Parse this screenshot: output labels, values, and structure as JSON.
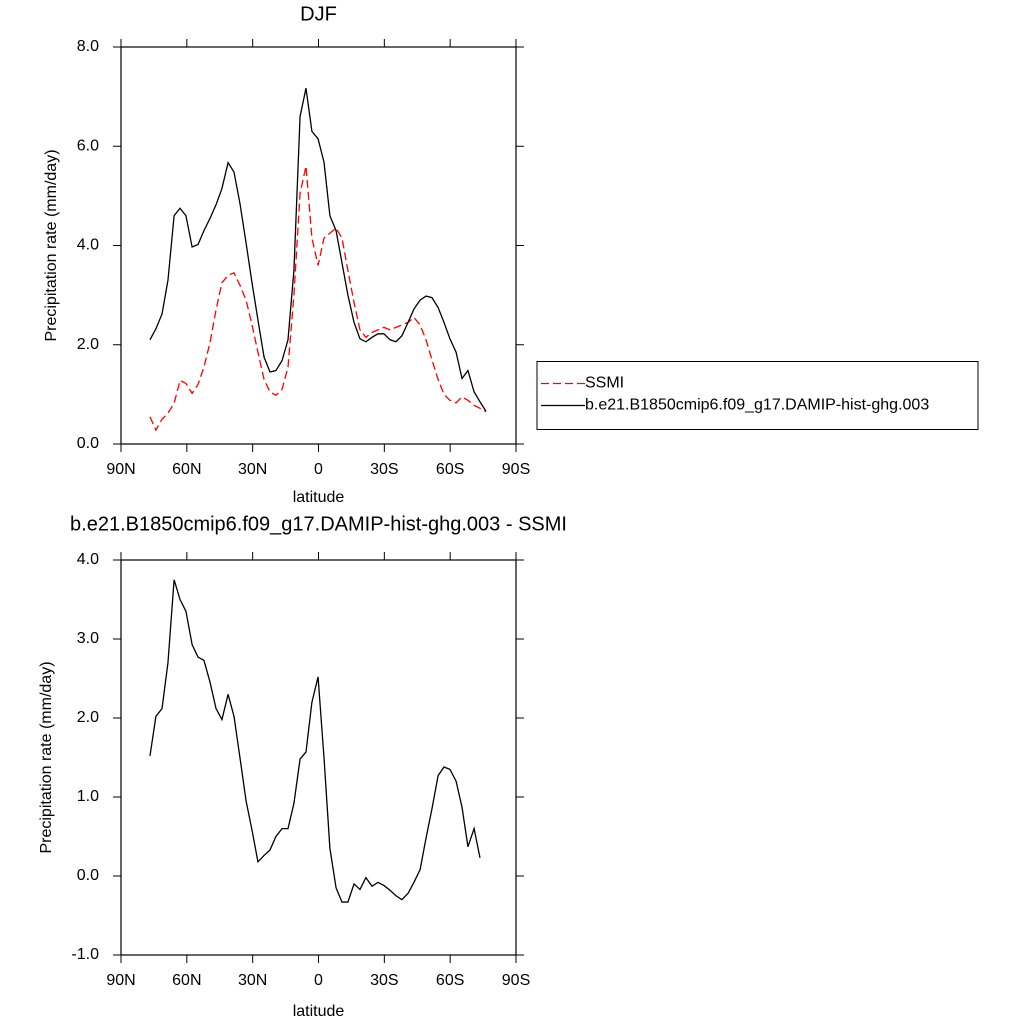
{
  "chart_data": [
    {
      "type": "line",
      "title": "DJF",
      "xlabel": "latitude",
      "ylabel": "Precipitation rate (mm/day)",
      "x": [
        76.8,
        74.1,
        71.3,
        68.6,
        65.8,
        63.1,
        60.4,
        57.6,
        54.9,
        52.2,
        49.4,
        46.7,
        44.0,
        41.2,
        38.5,
        35.8,
        33.0,
        30.3,
        27.6,
        24.8,
        22.1,
        19.4,
        16.6,
        13.9,
        11.2,
        8.4,
        5.7,
        3.0,
        0.2,
        -2.5,
        -5.2,
        -8.0,
        -10.7,
        -13.4,
        -16.2,
        -18.9,
        -21.6,
        -24.4,
        -27.1,
        -29.8,
        -32.6,
        -35.3,
        -38.0,
        -40.8,
        -43.5,
        -46.3,
        -49.0,
        -51.7,
        -54.5,
        -57.2,
        -59.9,
        -62.7,
        -65.4,
        -68.1,
        -70.9,
        -73.6,
        -76.3
      ],
      "series": [
        {
          "name": "SSMI",
          "color": "#ff0000",
          "line_style": "dashed",
          "values": [
            0.55,
            0.28,
            0.5,
            0.62,
            0.82,
            1.28,
            1.22,
            1.02,
            1.2,
            1.55,
            2.05,
            2.7,
            3.25,
            3.4,
            3.45,
            3.2,
            2.9,
            2.4,
            1.85,
            1.3,
            1.05,
            0.98,
            1.1,
            1.55,
            3.0,
            5.05,
            5.6,
            4.15,
            3.6,
            4.15,
            4.25,
            4.35,
            4.15,
            3.5,
            2.85,
            2.3,
            2.15,
            2.25,
            2.3,
            2.35,
            2.3,
            2.35,
            2.4,
            2.45,
            2.55,
            2.4,
            2.1,
            1.7,
            1.3,
            1.0,
            0.88,
            0.83,
            0.95,
            0.88,
            0.78,
            0.72,
            0.65
          ]
        },
        {
          "name": "b.e21.B1850cmip6.f09_g17.DAMIP-hist-ghg.003",
          "color": "#000000",
          "line_style": "solid",
          "values": [
            2.1,
            2.32,
            2.62,
            3.3,
            4.6,
            4.75,
            4.6,
            3.97,
            4.02,
            4.3,
            4.55,
            4.82,
            5.15,
            5.67,
            5.48,
            4.85,
            4.05,
            3.25,
            2.5,
            1.75,
            1.45,
            1.48,
            1.68,
            2.1,
            3.5,
            6.6,
            7.17,
            6.3,
            6.15,
            5.68,
            4.6,
            4.3,
            3.65,
            3.0,
            2.45,
            2.12,
            2.06,
            2.15,
            2.22,
            2.22,
            2.1,
            2.06,
            2.18,
            2.45,
            2.72,
            2.9,
            2.98,
            2.95,
            2.75,
            2.45,
            2.12,
            1.85,
            1.32,
            1.48,
            1.05,
            0.85,
            0.66
          ]
        }
      ],
      "xlim": [
        90,
        -90
      ],
      "xticks": [
        {
          "value": 90,
          "label": "90N"
        },
        {
          "value": 60,
          "label": "60N"
        },
        {
          "value": 30,
          "label": "30N"
        },
        0,
        {
          "value": -30,
          "label": "30S"
        },
        {
          "value": -60,
          "label": "60S"
        },
        {
          "value": -90,
          "label": "90S"
        }
      ],
      "ylim": [
        0,
        8
      ],
      "yticks": [
        {
          "value": 0,
          "label": "0.0"
        },
        {
          "value": 2,
          "label": "2.0"
        },
        {
          "value": 4,
          "label": "4.0"
        },
        {
          "value": 6,
          "label": "6.0"
        },
        {
          "value": 8,
          "label": "8.0"
        }
      ],
      "legend": "right"
    },
    {
      "type": "line",
      "title": "b.e21.B1850cmip6.f09_g17.DAMIP-hist-ghg.003 - SSMI",
      "xlabel": "latitude",
      "ylabel": "Precipitation rate (mm/day)",
      "x": [
        76.8,
        74.1,
        71.3,
        68.6,
        65.8,
        63.1,
        60.4,
        57.6,
        54.9,
        52.2,
        49.4,
        46.7,
        44.0,
        41.2,
        38.5,
        35.8,
        33.0,
        30.3,
        27.6,
        24.8,
        22.1,
        19.4,
        16.6,
        13.9,
        11.2,
        8.4,
        5.7,
        3.0,
        0.2,
        -2.5,
        -5.2,
        -8.0,
        -10.7,
        -13.4,
        -16.2,
        -18.9,
        -21.6,
        -24.4,
        -27.1,
        -29.8,
        -32.6,
        -35.3,
        -38.0,
        -40.8,
        -43.5,
        -46.3,
        -49.0,
        -51.7,
        -54.5,
        -57.2,
        -59.9,
        -62.7,
        -65.4,
        -68.1,
        -70.9,
        -73.6
      ],
      "series": [
        {
          "color": "#000000",
          "line_style": "solid",
          "values": [
            1.52,
            2.02,
            2.12,
            2.7,
            3.75,
            3.5,
            3.35,
            2.93,
            2.77,
            2.73,
            2.45,
            2.12,
            1.98,
            2.3,
            2.02,
            1.5,
            0.95,
            0.58,
            0.18,
            0.26,
            0.33,
            0.5,
            0.6,
            0.6,
            0.92,
            1.48,
            1.57,
            2.2,
            2.52,
            1.5,
            0.35,
            -0.15,
            -0.33,
            -0.33,
            -0.1,
            -0.17,
            -0.02,
            -0.13,
            -0.08,
            -0.12,
            -0.18,
            -0.25,
            -0.3,
            -0.22,
            -0.08,
            0.08,
            0.48,
            0.85,
            1.27,
            1.38,
            1.35,
            1.2,
            0.87,
            0.37,
            0.6,
            0.23
          ]
        }
      ],
      "xlim": [
        90,
        -90
      ],
      "xticks": [
        {
          "value": 90,
          "label": "90N"
        },
        {
          "value": 60,
          "label": "60N"
        },
        {
          "value": 30,
          "label": "30N"
        },
        0,
        {
          "value": -30,
          "label": "30S"
        },
        {
          "value": -60,
          "label": "60S"
        },
        {
          "value": -90,
          "label": "90S"
        }
      ],
      "ylim": [
        -1,
        4
      ],
      "yticks": [
        {
          "value": -1,
          "label": "-1.0"
        },
        {
          "value": 0,
          "label": "0.0"
        },
        {
          "value": 1,
          "label": "1.0"
        },
        {
          "value": 2,
          "label": "2.0"
        },
        {
          "value": 3,
          "label": "3.0"
        },
        {
          "value": 4,
          "label": "4.0"
        }
      ]
    }
  ]
}
